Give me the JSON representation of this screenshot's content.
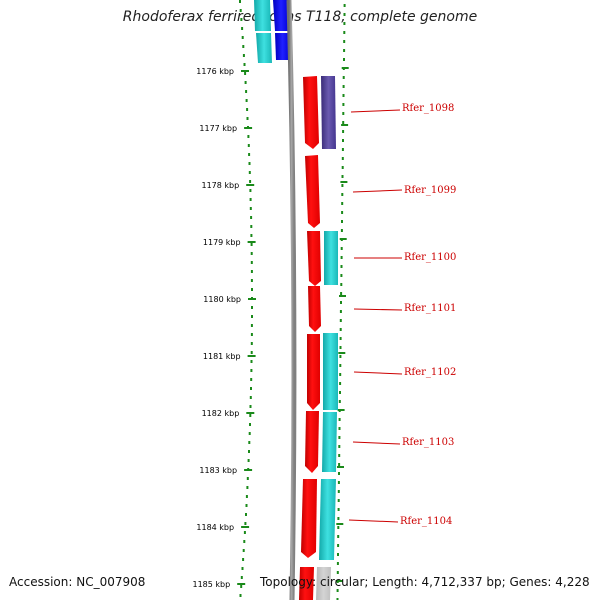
{
  "title": "Rhodoferax ferrireducens T118, complete genome",
  "accession_text": "Accession: NC_007908",
  "topology_text": "Topology: circular; Length: 4,712,337 bp; Genes: 4,228",
  "ticks": [
    "1176 kbp",
    "1177 kbp",
    "1178 kbp",
    "1179 kbp",
    "1180 kbp",
    "1181 kbp",
    "1182 kbp",
    "1183 kbp",
    "1184 kbp",
    "1185 kbp"
  ],
  "genes": [
    {
      "label": "Rfer_1098",
      "cog_color": "#4a3a8c"
    },
    {
      "label": "Rfer_1099",
      "cog_color": null
    },
    {
      "label": "Rfer_1100",
      "cog_color": "#1ec8c8"
    },
    {
      "label": "Rfer_1101",
      "cog_color": null
    },
    {
      "label": "Rfer_1102",
      "cog_color": "#1ec8c8"
    },
    {
      "label": "Rfer_1103",
      "cog_color": "#1ec8c8"
    },
    {
      "label": "Rfer_1104",
      "cog_color": "#1ec8c8"
    }
  ],
  "colors": {
    "forward_cds": "#ff0000",
    "backbone": "#808080",
    "tick_green": "#1a8a1a",
    "label_red": "#cc0000",
    "top_reverse_cds": "#0000ff",
    "top_cog": "#1ec8c8"
  }
}
